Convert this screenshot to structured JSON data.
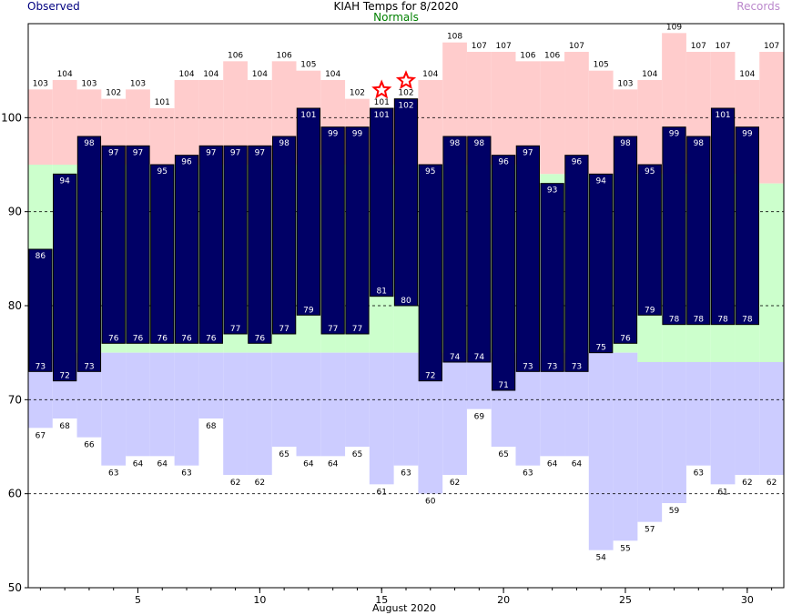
{
  "chart_data": {
    "type": "bar",
    "title": "KIAH Temps for 8/2020",
    "xlabel": "August 2020",
    "ylabel": "",
    "legend": {
      "observed": "Observed",
      "normals": "Normals",
      "records": "Records"
    },
    "ylim": [
      50,
      110
    ],
    "xlim": [
      0.5,
      31.5
    ],
    "yticks": [
      50,
      60,
      70,
      80,
      90,
      100
    ],
    "xticks": [
      5,
      10,
      15,
      20,
      25,
      30
    ],
    "grid_lines": [
      60,
      70,
      80,
      90,
      100
    ],
    "days": [
      1,
      2,
      3,
      4,
      5,
      6,
      7,
      8,
      9,
      10,
      11,
      12,
      13,
      14,
      15,
      16,
      17,
      18,
      19,
      20,
      21,
      22,
      23,
      24,
      25,
      26,
      27,
      28,
      29,
      30,
      31
    ],
    "observed_high": [
      86,
      94,
      98,
      97,
      97,
      95,
      96,
      97,
      97,
      97,
      98,
      101,
      99,
      99,
      101,
      102,
      95,
      98,
      98,
      96,
      97,
      93,
      96,
      94,
      98,
      95,
      99,
      98,
      101,
      99,
      null
    ],
    "observed_low": [
      73,
      72,
      73,
      76,
      76,
      76,
      76,
      76,
      77,
      76,
      77,
      79,
      77,
      77,
      81,
      80,
      72,
      74,
      74,
      71,
      73,
      73,
      73,
      75,
      76,
      79,
      78,
      78,
      78,
      78,
      null
    ],
    "normal_high": [
      95,
      95,
      95,
      95,
      95,
      95,
      95,
      95,
      95,
      95,
      95,
      95,
      95,
      95,
      95,
      95,
      95,
      95,
      95,
      95,
      95,
      94,
      94,
      94,
      94,
      94,
      94,
      94,
      94,
      94,
      93
    ],
    "normal_low": [
      75,
      75,
      75,
      75,
      75,
      75,
      75,
      75,
      75,
      75,
      75,
      75,
      75,
      75,
      75,
      75,
      75,
      75,
      75,
      75,
      75,
      75,
      75,
      75,
      75,
      74,
      74,
      74,
      74,
      74,
      74
    ],
    "record_high": [
      103,
      104,
      103,
      102,
      103,
      101,
      104,
      104,
      106,
      104,
      106,
      105,
      104,
      102,
      101,
      102,
      104,
      108,
      107,
      107,
      106,
      106,
      107,
      105,
      103,
      104,
      109,
      107,
      107,
      104,
      107
    ],
    "record_low": [
      67,
      68,
      66,
      63,
      64,
      64,
      63,
      68,
      62,
      62,
      65,
      64,
      64,
      65,
      61,
      63,
      60,
      62,
      69,
      65,
      63,
      64,
      64,
      54,
      55,
      57,
      59,
      63,
      61,
      62,
      62
    ],
    "record_set_days": [
      15,
      16
    ],
    "colors": {
      "observed_bar": "#000066",
      "normal_band": "#ccffcc",
      "record_high_band": "#ffcccc",
      "record_low_band": "#ccccff",
      "star": "#ff0000",
      "title_observed": "#000080",
      "title_normals": "#008000",
      "title_records": "#bb88cc"
    }
  }
}
